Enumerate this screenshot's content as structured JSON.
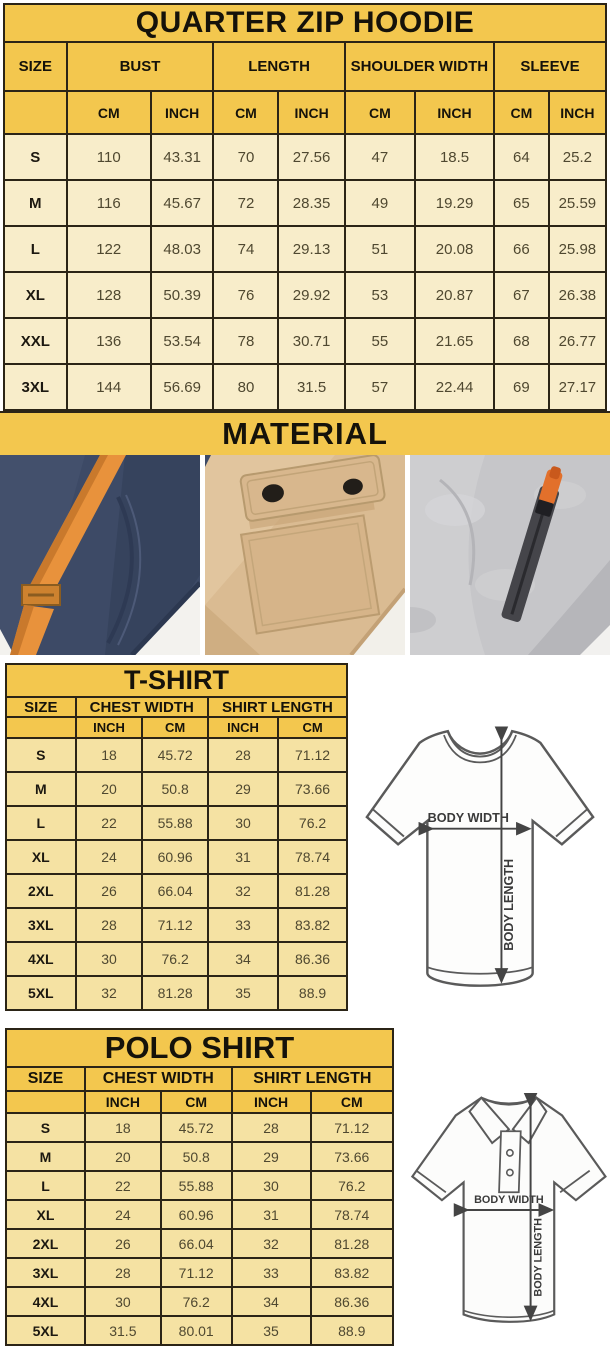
{
  "colors": {
    "header_yellow": "#f3c74e",
    "hoodie_row_bg": "#f8edca",
    "shirt_row_bg": "#f5e2a3",
    "table_border": "#2b2416",
    "value_text": "#4f4830",
    "navy_fabric": "#3d4a66",
    "orange_strap": "#e8923c",
    "khaki_fabric": "#dabb92",
    "gray_fabric": "#c6c6c9",
    "zipper_dark": "#45454a",
    "zipper_pull_orange": "#e2702b"
  },
  "hoodie": {
    "title": "QUARTER ZIP HOODIE",
    "columns": {
      "size": "SIZE",
      "bust": "BUST",
      "length": "LENGTH",
      "shoulder": "SHOULDER WIDTH",
      "sleeve": "SLEEVE"
    },
    "sub_headers": [
      "CM",
      "INCH",
      "CM",
      "INCH",
      "CM",
      "INCH",
      "CM",
      "INCH"
    ],
    "rows": [
      {
        "size": "S",
        "values": [
          "110",
          "43.31",
          "70",
          "27.56",
          "47",
          "18.5",
          "64",
          "25.2"
        ]
      },
      {
        "size": "M",
        "values": [
          "116",
          "45.67",
          "72",
          "28.35",
          "49",
          "19.29",
          "65",
          "25.59"
        ]
      },
      {
        "size": "L",
        "values": [
          "122",
          "48.03",
          "74",
          "29.13",
          "51",
          "20.08",
          "66",
          "25.98"
        ]
      },
      {
        "size": "XL",
        "values": [
          "128",
          "50.39",
          "76",
          "29.92",
          "53",
          "20.87",
          "67",
          "26.38"
        ]
      },
      {
        "size": "XXL",
        "values": [
          "136",
          "53.54",
          "78",
          "30.71",
          "55",
          "21.65",
          "68",
          "26.77"
        ]
      },
      {
        "size": "3XL",
        "values": [
          "144",
          "56.69",
          "80",
          "31.5",
          "57",
          "22.44",
          "69",
          "27.17"
        ]
      }
    ]
  },
  "material": {
    "title": "MATERIAL",
    "photos": [
      {
        "name": "navy-fleece-with-orange-drawstring"
      },
      {
        "name": "khaki-fabric-snap-flap-pocket"
      },
      {
        "name": "gray-heather-fleece-zipper-orange-pull"
      }
    ]
  },
  "tshirt": {
    "title": "T-SHIRT",
    "columns": {
      "size": "SIZE",
      "chest": "CHEST WIDTH",
      "length": "SHIRT LENGTH"
    },
    "sub_headers": [
      "INCH",
      "CM",
      "INCH",
      "CM"
    ],
    "rows": [
      {
        "size": "S",
        "values": [
          "18",
          "45.72",
          "28",
          "71.12"
        ]
      },
      {
        "size": "M",
        "values": [
          "20",
          "50.8",
          "29",
          "73.66"
        ]
      },
      {
        "size": "L",
        "values": [
          "22",
          "55.88",
          "30",
          "76.2"
        ]
      },
      {
        "size": "XL",
        "values": [
          "24",
          "60.96",
          "31",
          "78.74"
        ]
      },
      {
        "size": "2XL",
        "values": [
          "26",
          "66.04",
          "32",
          "81.28"
        ]
      },
      {
        "size": "3XL",
        "values": [
          "28",
          "71.12",
          "33",
          "83.82"
        ]
      },
      {
        "size": "4XL",
        "values": [
          "30",
          "76.2",
          "34",
          "86.36"
        ]
      },
      {
        "size": "5XL",
        "values": [
          "32",
          "81.28",
          "35",
          "88.9"
        ]
      }
    ]
  },
  "polo": {
    "title": "POLO SHIRT",
    "columns": {
      "size": "SIZE",
      "chest": "CHEST WIDTH",
      "length": "SHIRT LENGTH"
    },
    "sub_headers": [
      "INCH",
      "CM",
      "INCH",
      "CM"
    ],
    "rows": [
      {
        "size": "S",
        "values": [
          "18",
          "45.72",
          "28",
          "71.12"
        ]
      },
      {
        "size": "M",
        "values": [
          "20",
          "50.8",
          "29",
          "73.66"
        ]
      },
      {
        "size": "L",
        "values": [
          "22",
          "55.88",
          "30",
          "76.2"
        ]
      },
      {
        "size": "XL",
        "values": [
          "24",
          "60.96",
          "31",
          "78.74"
        ]
      },
      {
        "size": "2XL",
        "values": [
          "26",
          "66.04",
          "32",
          "81.28"
        ]
      },
      {
        "size": "3XL",
        "values": [
          "28",
          "71.12",
          "33",
          "83.82"
        ]
      },
      {
        "size": "4XL",
        "values": [
          "30",
          "76.2",
          "34",
          "86.36"
        ]
      },
      {
        "size": "5XL",
        "values": [
          "31.5",
          "80.01",
          "35",
          "88.9"
        ]
      }
    ]
  },
  "diagram": {
    "width_label": "BODY WIDTH",
    "length_label": "BODY LENGTH"
  }
}
